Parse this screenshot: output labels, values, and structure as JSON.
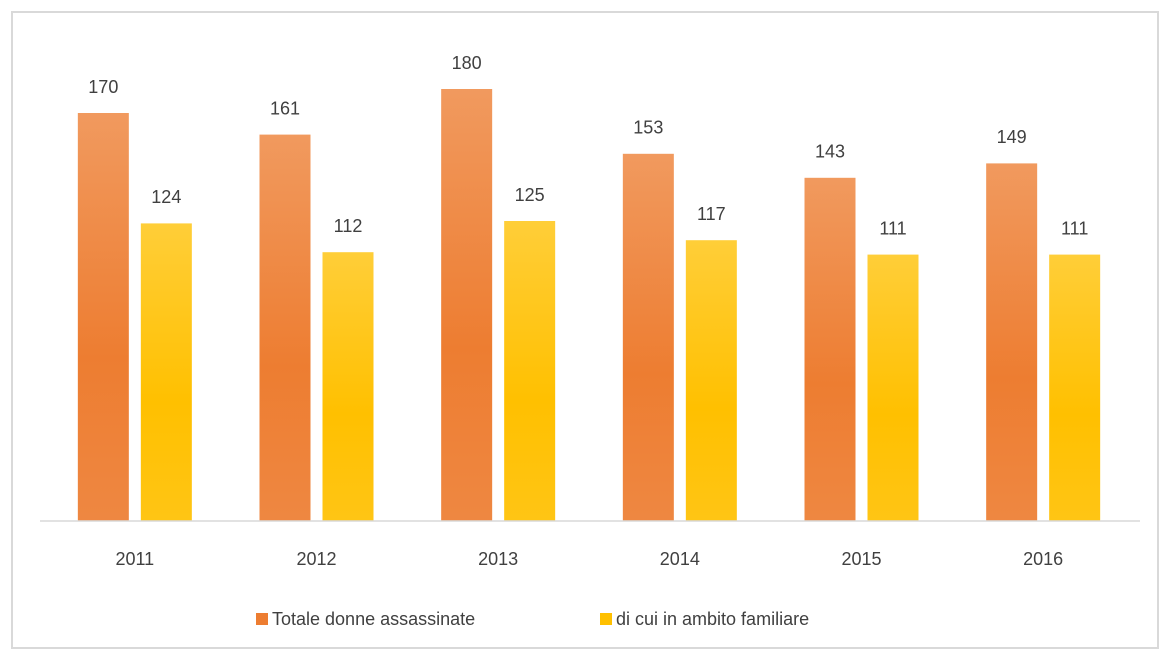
{
  "chart_data": {
    "type": "bar",
    "categories": [
      "2011",
      "2012",
      "2013",
      "2014",
      "2015",
      "2016"
    ],
    "series": [
      {
        "name": "Totale donne assassinate",
        "color": "#ED7D31",
        "values": [
          170,
          161,
          180,
          153,
          143,
          149
        ]
      },
      {
        "name": "di cui in ambito familiare",
        "color": "#FFC000",
        "values": [
          124,
          112,
          125,
          117,
          111,
          111
        ]
      }
    ],
    "ylim": [
      0,
      200
    ],
    "legend": "bottom"
  }
}
